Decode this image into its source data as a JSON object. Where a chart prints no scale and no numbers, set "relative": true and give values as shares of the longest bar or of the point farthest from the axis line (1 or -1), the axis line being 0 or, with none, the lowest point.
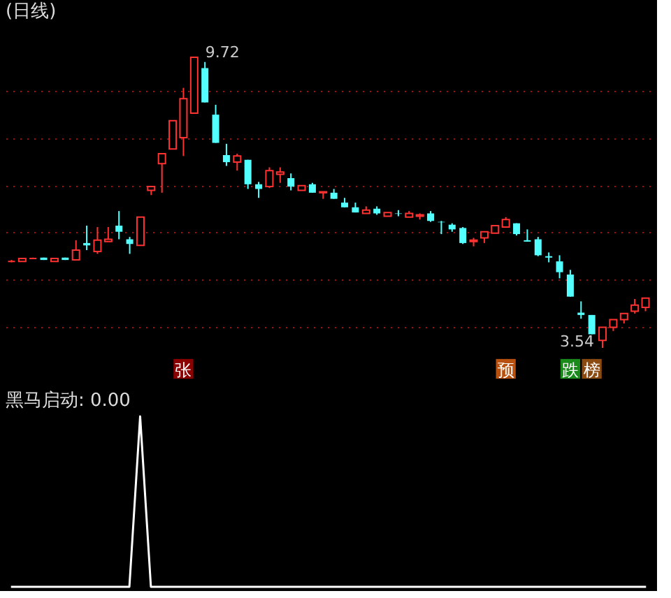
{
  "chart_data": [
    {
      "type": "candlestick",
      "title": "(日线)",
      "tick_labels": false,
      "grid": "y",
      "categories": [
        null,
        null,
        null,
        null,
        null,
        null,
        null,
        null,
        null,
        null,
        null,
        null,
        null,
        null,
        null,
        null,
        null,
        null,
        null,
        null,
        null,
        null,
        null,
        null,
        null,
        null,
        null,
        null,
        null,
        null,
        null,
        null,
        null,
        null,
        null,
        null,
        null,
        null,
        null,
        null,
        null,
        null,
        null,
        null,
        null,
        null,
        null,
        null,
        null,
        null,
        null,
        null,
        null,
        null,
        null,
        null,
        null,
        null,
        null,
        null
      ],
      "ohlc": [
        [
          5.38,
          5.41,
          5.36,
          5.38
        ],
        [
          5.38,
          5.44,
          5.38,
          5.44
        ],
        [
          5.44,
          5.46,
          5.44,
          5.44
        ],
        [
          5.46,
          5.46,
          5.41,
          5.41
        ],
        [
          5.38,
          5.44,
          5.38,
          5.44
        ],
        [
          5.46,
          5.46,
          5.41,
          5.41
        ],
        [
          5.41,
          5.83,
          5.41,
          5.62
        ],
        [
          5.77,
          6.14,
          5.62,
          5.72
        ],
        [
          5.59,
          6.11,
          5.54,
          5.83
        ],
        [
          5.8,
          6.11,
          5.8,
          5.85
        ],
        [
          6.14,
          6.45,
          5.85,
          6.01
        ],
        [
          5.85,
          5.9,
          5.54,
          5.75
        ],
        [
          5.72,
          6.32,
          5.72,
          6.32
        ],
        [
          6.89,
          6.97,
          6.79,
          6.97
        ],
        [
          7.46,
          7.67,
          6.84,
          7.67
        ],
        [
          7.77,
          8.37,
          7.77,
          8.37
        ],
        [
          8.01,
          9.07,
          7.62,
          8.84
        ],
        [
          8.53,
          9.72,
          8.53,
          9.72
        ],
        [
          9.49,
          9.62,
          8.76,
          8.76
        ],
        [
          8.5,
          8.71,
          7.9,
          7.9
        ],
        [
          7.64,
          7.88,
          7.41,
          7.49
        ],
        [
          7.49,
          7.67,
          7.31,
          7.62
        ],
        [
          7.54,
          7.54,
          6.92,
          7.02
        ],
        [
          7.02,
          7.07,
          6.73,
          6.92
        ],
        [
          6.97,
          7.38,
          6.94,
          7.31
        ],
        [
          7.23,
          7.38,
          7.05,
          7.28
        ],
        [
          7.15,
          7.25,
          6.89,
          6.97
        ],
        [
          6.89,
          6.99,
          6.89,
          6.99
        ],
        [
          7.02,
          7.05,
          6.84,
          6.84
        ],
        [
          6.84,
          6.86,
          6.71,
          6.86
        ],
        [
          6.84,
          6.92,
          6.71,
          6.71
        ],
        [
          6.63,
          6.73,
          6.53,
          6.53
        ],
        [
          6.53,
          6.63,
          6.42,
          6.42
        ],
        [
          6.4,
          6.55,
          6.4,
          6.47
        ],
        [
          6.5,
          6.55,
          6.37,
          6.4
        ],
        [
          6.34,
          6.42,
          6.34,
          6.42
        ],
        [
          6.4,
          6.47,
          6.34,
          6.39
        ],
        [
          6.32,
          6.45,
          6.32,
          6.4
        ],
        [
          6.34,
          6.4,
          6.27,
          6.37
        ],
        [
          6.4,
          6.45,
          6.22,
          6.24
        ],
        [
          6.22,
          6.24,
          5.96,
          6.21
        ],
        [
          6.16,
          6.19,
          6.01,
          6.06
        ],
        [
          6.09,
          6.11,
          5.75,
          5.77
        ],
        [
          5.8,
          5.88,
          5.7,
          5.83
        ],
        [
          5.88,
          6.01,
          5.77,
          6.01
        ],
        [
          5.98,
          6.14,
          5.98,
          6.14
        ],
        [
          6.11,
          6.32,
          6.11,
          6.27
        ],
        [
          6.19,
          6.19,
          5.93,
          5.96
        ],
        [
          5.83,
          6.06,
          5.8,
          5.8
        ],
        [
          5.85,
          5.9,
          5.49,
          5.51
        ],
        [
          5.49,
          5.57,
          5.36,
          5.46
        ],
        [
          5.38,
          5.51,
          5.02,
          5.15
        ],
        [
          5.1,
          5.2,
          4.63,
          4.63
        ],
        [
          4.29,
          4.53,
          4.16,
          4.24
        ],
        [
          4.24,
          4.24,
          3.83,
          3.83
        ],
        [
          3.7,
          3.98,
          3.54,
          3.98
        ],
        [
          3.98,
          4.14,
          3.9,
          4.14
        ],
        [
          4.14,
          4.27,
          4.06,
          4.27
        ],
        [
          4.32,
          4.58,
          4.27,
          4.45
        ],
        [
          4.4,
          4.6,
          4.32,
          4.6
        ]
      ],
      "yticks": [
        {
          "value": 4,
          "label": null
        },
        {
          "value": 5,
          "label": null
        },
        {
          "value": 6,
          "label": null
        },
        {
          "value": 7,
          "label": null
        },
        {
          "value": 8,
          "label": null
        },
        {
          "value": 9,
          "label": null
        }
      ],
      "annotations": [
        "9.72",
        "3.54",
        "张",
        "预",
        "跌",
        "榜"
      ]
    },
    {
      "type": "line",
      "title": "黑马启动: 0.00",
      "relative": true,
      "tick_labels": false,
      "categories": [
        null,
        null,
        null,
        null,
        null,
        null,
        null,
        null,
        null,
        null,
        null,
        null,
        null,
        null,
        null,
        null,
        null,
        null,
        null,
        null,
        null,
        null,
        null,
        null,
        null,
        null,
        null,
        null,
        null,
        null,
        null,
        null,
        null,
        null,
        null,
        null,
        null,
        null,
        null,
        null,
        null,
        null,
        null,
        null,
        null,
        null,
        null,
        null,
        null,
        null,
        null,
        null,
        null,
        null,
        null,
        null,
        null,
        null,
        null,
        null
      ],
      "series": [
        {
          "color": "#ffffff",
          "values": [
            0,
            0,
            0,
            0,
            0,
            0,
            0,
            0,
            0,
            0,
            0,
            0,
            1,
            0,
            0,
            0,
            0,
            0,
            0,
            0,
            0,
            0,
            0,
            0,
            0,
            0,
            0,
            0,
            0,
            0,
            0,
            0,
            0,
            0,
            0,
            0,
            0,
            0,
            0,
            0,
            0,
            0,
            0,
            0,
            0,
            0,
            0,
            0,
            0,
            0,
            0,
            0,
            0,
            0,
            0,
            0,
            0,
            0,
            0,
            0
          ]
        }
      ]
    }
  ]
}
